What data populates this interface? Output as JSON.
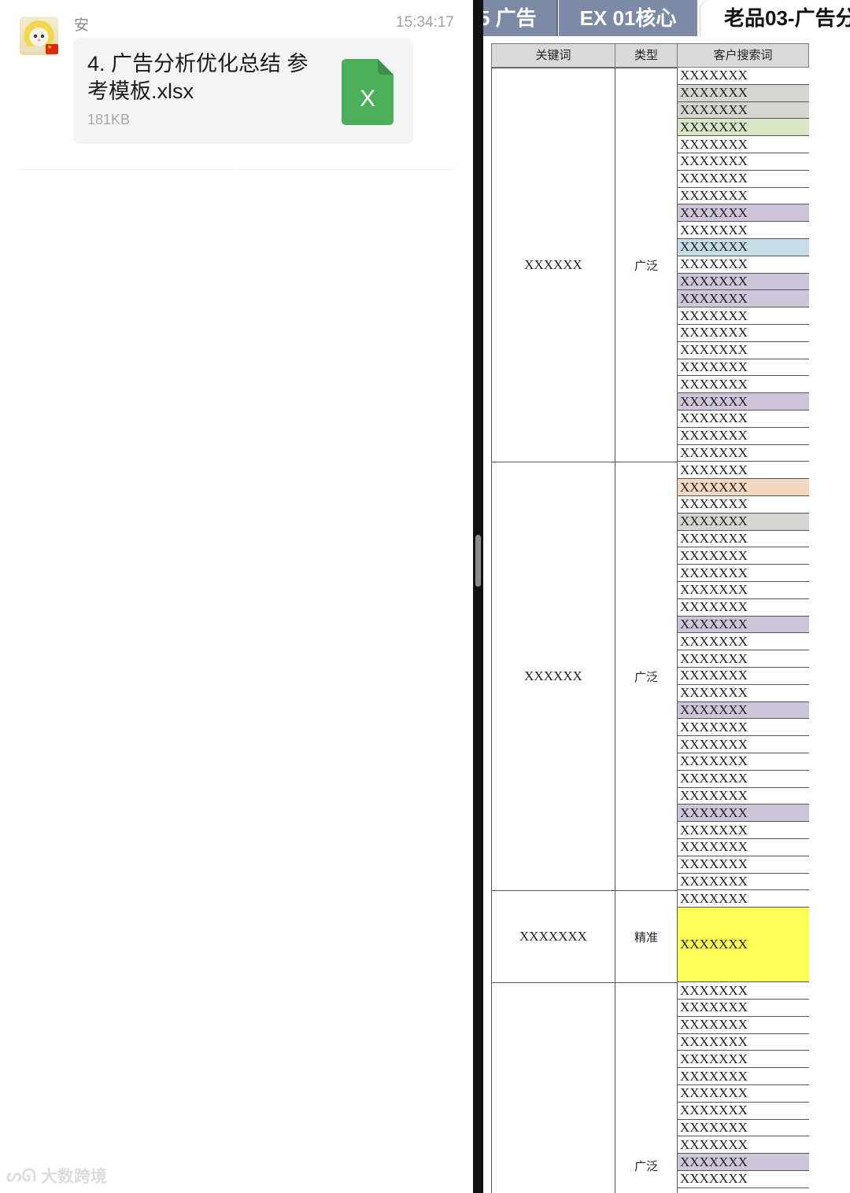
{
  "chat": {
    "sender": "安",
    "time": "15:34:17",
    "file": {
      "name": "4. 广告分析优化总结 参考模板.xlsx",
      "size": "181KB",
      "icon_letter": "X",
      "icon": "excel-file-icon",
      "icon_color": "#4caf5a"
    },
    "watermark": "大数跨境"
  },
  "sheet": {
    "tabs": [
      "5 广告",
      "EX 01核心",
      "老品03-广告分"
    ],
    "headers": {
      "keyword": "关键词",
      "type": "类型",
      "search_term": "客户搜索词"
    },
    "groups": [
      {
        "keyword": "XXXXXX",
        "type": "广泛",
        "rows": [
          "XXXXXXX",
          "XXXXXXX",
          "XXXXXXX",
          "XXXXXXX",
          "XXXXXXX",
          "XXXXXXX",
          "XXXXXXX",
          "XXXXXXX",
          "XXXXXXX",
          "XXXXXXX",
          "XXXXXXX",
          "XXXXXXX",
          "XXXXXXX",
          "XXXXXXX",
          "XXXXXXX",
          "XXXXXXX",
          "XXXXXXX",
          "XXXXXXX",
          "XXXXXXX",
          "XXXXXXX",
          "XXXXXXX",
          "XXXXXXX",
          "XXXXXXX"
        ],
        "colors": [
          "",
          "#d5d6d0",
          "#d5d6d0",
          "#d9e6c6",
          "",
          "",
          "",
          "",
          "#cfc6dc",
          "",
          "#c5dde7",
          "",
          "#cfc6dc",
          "#cfc6dc",
          "",
          "",
          "",
          "",
          "",
          "#cfc6dc",
          "",
          "",
          ""
        ]
      },
      {
        "keyword": "XXXXXX",
        "type": "广泛",
        "rows": [
          "XXXXXXX",
          "XXXXXXX",
          "XXXXXXX",
          "XXXXXXX",
          "XXXXXXX",
          "XXXXXXX",
          "XXXXXXX",
          "XXXXXXX",
          "XXXXXXX",
          "XXXXXXX",
          "XXXXXXX",
          "XXXXXXX",
          "XXXXXXX",
          "XXXXXXX",
          "XXXXXXX",
          "XXXXXXX",
          "XXXXXXX",
          "XXXXXXX",
          "XXXXXXX",
          "XXXXXXX",
          "XXXXXXX",
          "XXXXXXX",
          "XXXXXXX",
          "XXXXXXX",
          "XXXXXXX"
        ],
        "colors": [
          "",
          "#f4d7bf",
          "",
          "#d5d6d0",
          "",
          "",
          "",
          "",
          "",
          "#cfc6dc",
          "",
          "",
          "",
          "",
          "#cfc6dc",
          "",
          "",
          "",
          "",
          "",
          "#cfc6dc",
          "",
          "",
          "",
          ""
        ]
      },
      {
        "keyword": "XXXXXXX",
        "type": "精准",
        "rows": [
          "XXXXXXX",
          "XXXXXXX"
        ],
        "colors": [
          "",
          "#fefe55"
        ]
      },
      {
        "keyword": "",
        "type": "广泛",
        "rows": [
          "XXXXXXX",
          "XXXXXXX",
          "XXXXXXX",
          "XXXXXXX",
          "XXXXXXX",
          "XXXXXXX",
          "XXXXXXX",
          "XXXXXXX",
          "XXXXXXX",
          "XXXXXXX",
          "XXXXXXX",
          "XXXXXXX"
        ],
        "colors": [
          "",
          "",
          "",
          "",
          "",
          "",
          "",
          "",
          "",
          "",
          "#cfc6dc",
          ""
        ]
      }
    ]
  }
}
